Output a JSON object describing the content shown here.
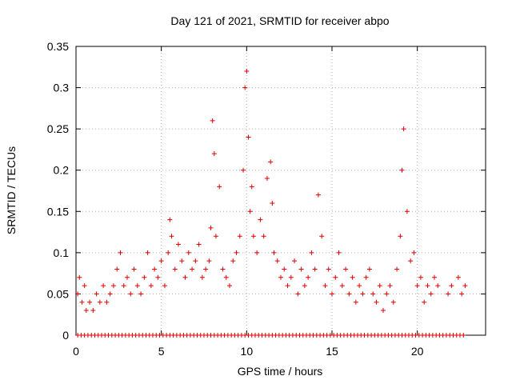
{
  "chart_data": {
    "type": "scatter",
    "title": "Day 121 of 2021, SRMTID for receiver abpo",
    "xlabel": "GPS time / hours",
    "ylabel": "SRMTID / TECUs",
    "xlim": [
      0,
      24
    ],
    "ylim": [
      0,
      0.35
    ],
    "x_ticks": [
      0,
      5,
      10,
      15,
      20
    ],
    "x_tick_labels": [
      "0",
      "5",
      "10",
      "15",
      "20"
    ],
    "y_ticks": [
      0,
      0.05,
      0.1,
      0.15,
      0.2,
      0.25,
      0.3,
      0.35
    ],
    "y_tick_labels": [
      "0",
      "0.05",
      "0.1",
      "0.15",
      "0.2",
      "0.25",
      "0.3",
      "0.35"
    ],
    "grid": true,
    "marker": "+",
    "color": "#dd0000",
    "series": [
      {
        "name": "SRMTID",
        "x": [
          0.1,
          0.2,
          0.35,
          0.5,
          0.6,
          0.8,
          1.0,
          1.2,
          1.4,
          1.6,
          1.8,
          2.0,
          2.2,
          2.4,
          2.6,
          2.8,
          3.0,
          3.2,
          3.4,
          3.6,
          3.8,
          4.0,
          4.2,
          4.4,
          4.6,
          4.8,
          5.0,
          5.2,
          5.4,
          5.5,
          5.6,
          5.8,
          6.0,
          6.2,
          6.4,
          6.6,
          6.8,
          7.0,
          7.2,
          7.4,
          7.6,
          7.8,
          7.9,
          8.0,
          8.1,
          8.2,
          8.4,
          8.6,
          8.8,
          9.0,
          9.2,
          9.4,
          9.6,
          9.8,
          9.9,
          10.0,
          10.1,
          10.2,
          10.3,
          10.4,
          10.6,
          10.8,
          11.0,
          11.2,
          11.4,
          11.5,
          11.6,
          11.8,
          12.0,
          12.2,
          12.4,
          12.6,
          12.8,
          13.0,
          13.2,
          13.4,
          13.6,
          13.8,
          14.0,
          14.2,
          14.4,
          14.6,
          14.8,
          15.0,
          15.2,
          15.4,
          15.6,
          15.8,
          16.0,
          16.2,
          16.4,
          16.6,
          16.8,
          17.0,
          17.2,
          17.4,
          17.6,
          17.8,
          18.0,
          18.2,
          18.4,
          18.6,
          18.8,
          19.0,
          19.1,
          19.2,
          19.4,
          19.6,
          19.8,
          20.0,
          20.2,
          20.4,
          20.6,
          20.8,
          21.0,
          21.2,
          21.8,
          22.0,
          22.4,
          22.6,
          22.8
        ],
        "values": [
          0.05,
          0.07,
          0.04,
          0.06,
          0.03,
          0.04,
          0.03,
          0.05,
          0.04,
          0.06,
          0.04,
          0.05,
          0.06,
          0.08,
          0.1,
          0.06,
          0.07,
          0.05,
          0.08,
          0.06,
          0.05,
          0.07,
          0.1,
          0.06,
          0.08,
          0.07,
          0.09,
          0.06,
          0.1,
          0.14,
          0.12,
          0.08,
          0.11,
          0.09,
          0.07,
          0.1,
          0.08,
          0.09,
          0.11,
          0.07,
          0.08,
          0.09,
          0.13,
          0.26,
          0.22,
          0.12,
          0.18,
          0.08,
          0.07,
          0.06,
          0.09,
          0.1,
          0.12,
          0.2,
          0.3,
          0.32,
          0.24,
          0.15,
          0.18,
          0.12,
          0.1,
          0.14,
          0.12,
          0.19,
          0.21,
          0.16,
          0.1,
          0.09,
          0.07,
          0.08,
          0.06,
          0.07,
          0.09,
          0.05,
          0.08,
          0.06,
          0.07,
          0.1,
          0.08,
          0.17,
          0.12,
          0.06,
          0.08,
          0.05,
          0.07,
          0.1,
          0.06,
          0.08,
          0.05,
          0.07,
          0.04,
          0.06,
          0.05,
          0.07,
          0.08,
          0.05,
          0.04,
          0.06,
          0.03,
          0.05,
          0.06,
          0.04,
          0.08,
          0.12,
          0.2,
          0.25,
          0.15,
          0.09,
          0.1,
          0.06,
          0.07,
          0.04,
          0.06,
          0.05,
          0.07,
          0.06,
          0.05,
          0.06,
          0.07,
          0.05,
          0.06
        ],
        "zeros_x": [
          0.1,
          0.3,
          0.5,
          0.7,
          0.9,
          1.1,
          1.3,
          1.5,
          1.7,
          1.9,
          2.1,
          2.3,
          2.5,
          2.7,
          2.9,
          3.1,
          3.3,
          3.5,
          3.7,
          3.9,
          4.1,
          4.3,
          4.5,
          4.7,
          4.9,
          5.1,
          5.3,
          5.5,
          5.7,
          5.9,
          6.1,
          6.3,
          6.5,
          6.7,
          6.9,
          7.1,
          7.3,
          7.5,
          7.7,
          7.9,
          8.1,
          8.3,
          8.5,
          8.7,
          8.9,
          9.1,
          9.3,
          9.5,
          9.7,
          9.9,
          10.1,
          10.3,
          10.5,
          10.7,
          10.9,
          11.1,
          11.3,
          11.5,
          11.7,
          11.9,
          12.1,
          12.3,
          12.5,
          12.7,
          12.9,
          13.1,
          13.3,
          13.5,
          13.7,
          13.9,
          14.1,
          14.3,
          14.5,
          14.7,
          14.9,
          15.1,
          15.3,
          15.5,
          15.7,
          15.9,
          16.1,
          16.3,
          16.5,
          16.7,
          16.9,
          17.1,
          17.3,
          17.5,
          17.7,
          17.9,
          18.1,
          18.3,
          18.5,
          18.7,
          18.9,
          19.1,
          19.3,
          19.5,
          19.7,
          19.9,
          20.1,
          20.3,
          20.5,
          20.7,
          20.9,
          21.1,
          21.3,
          21.5,
          21.7,
          21.9,
          22.1,
          22.3,
          22.5,
          22.7
        ]
      }
    ]
  }
}
